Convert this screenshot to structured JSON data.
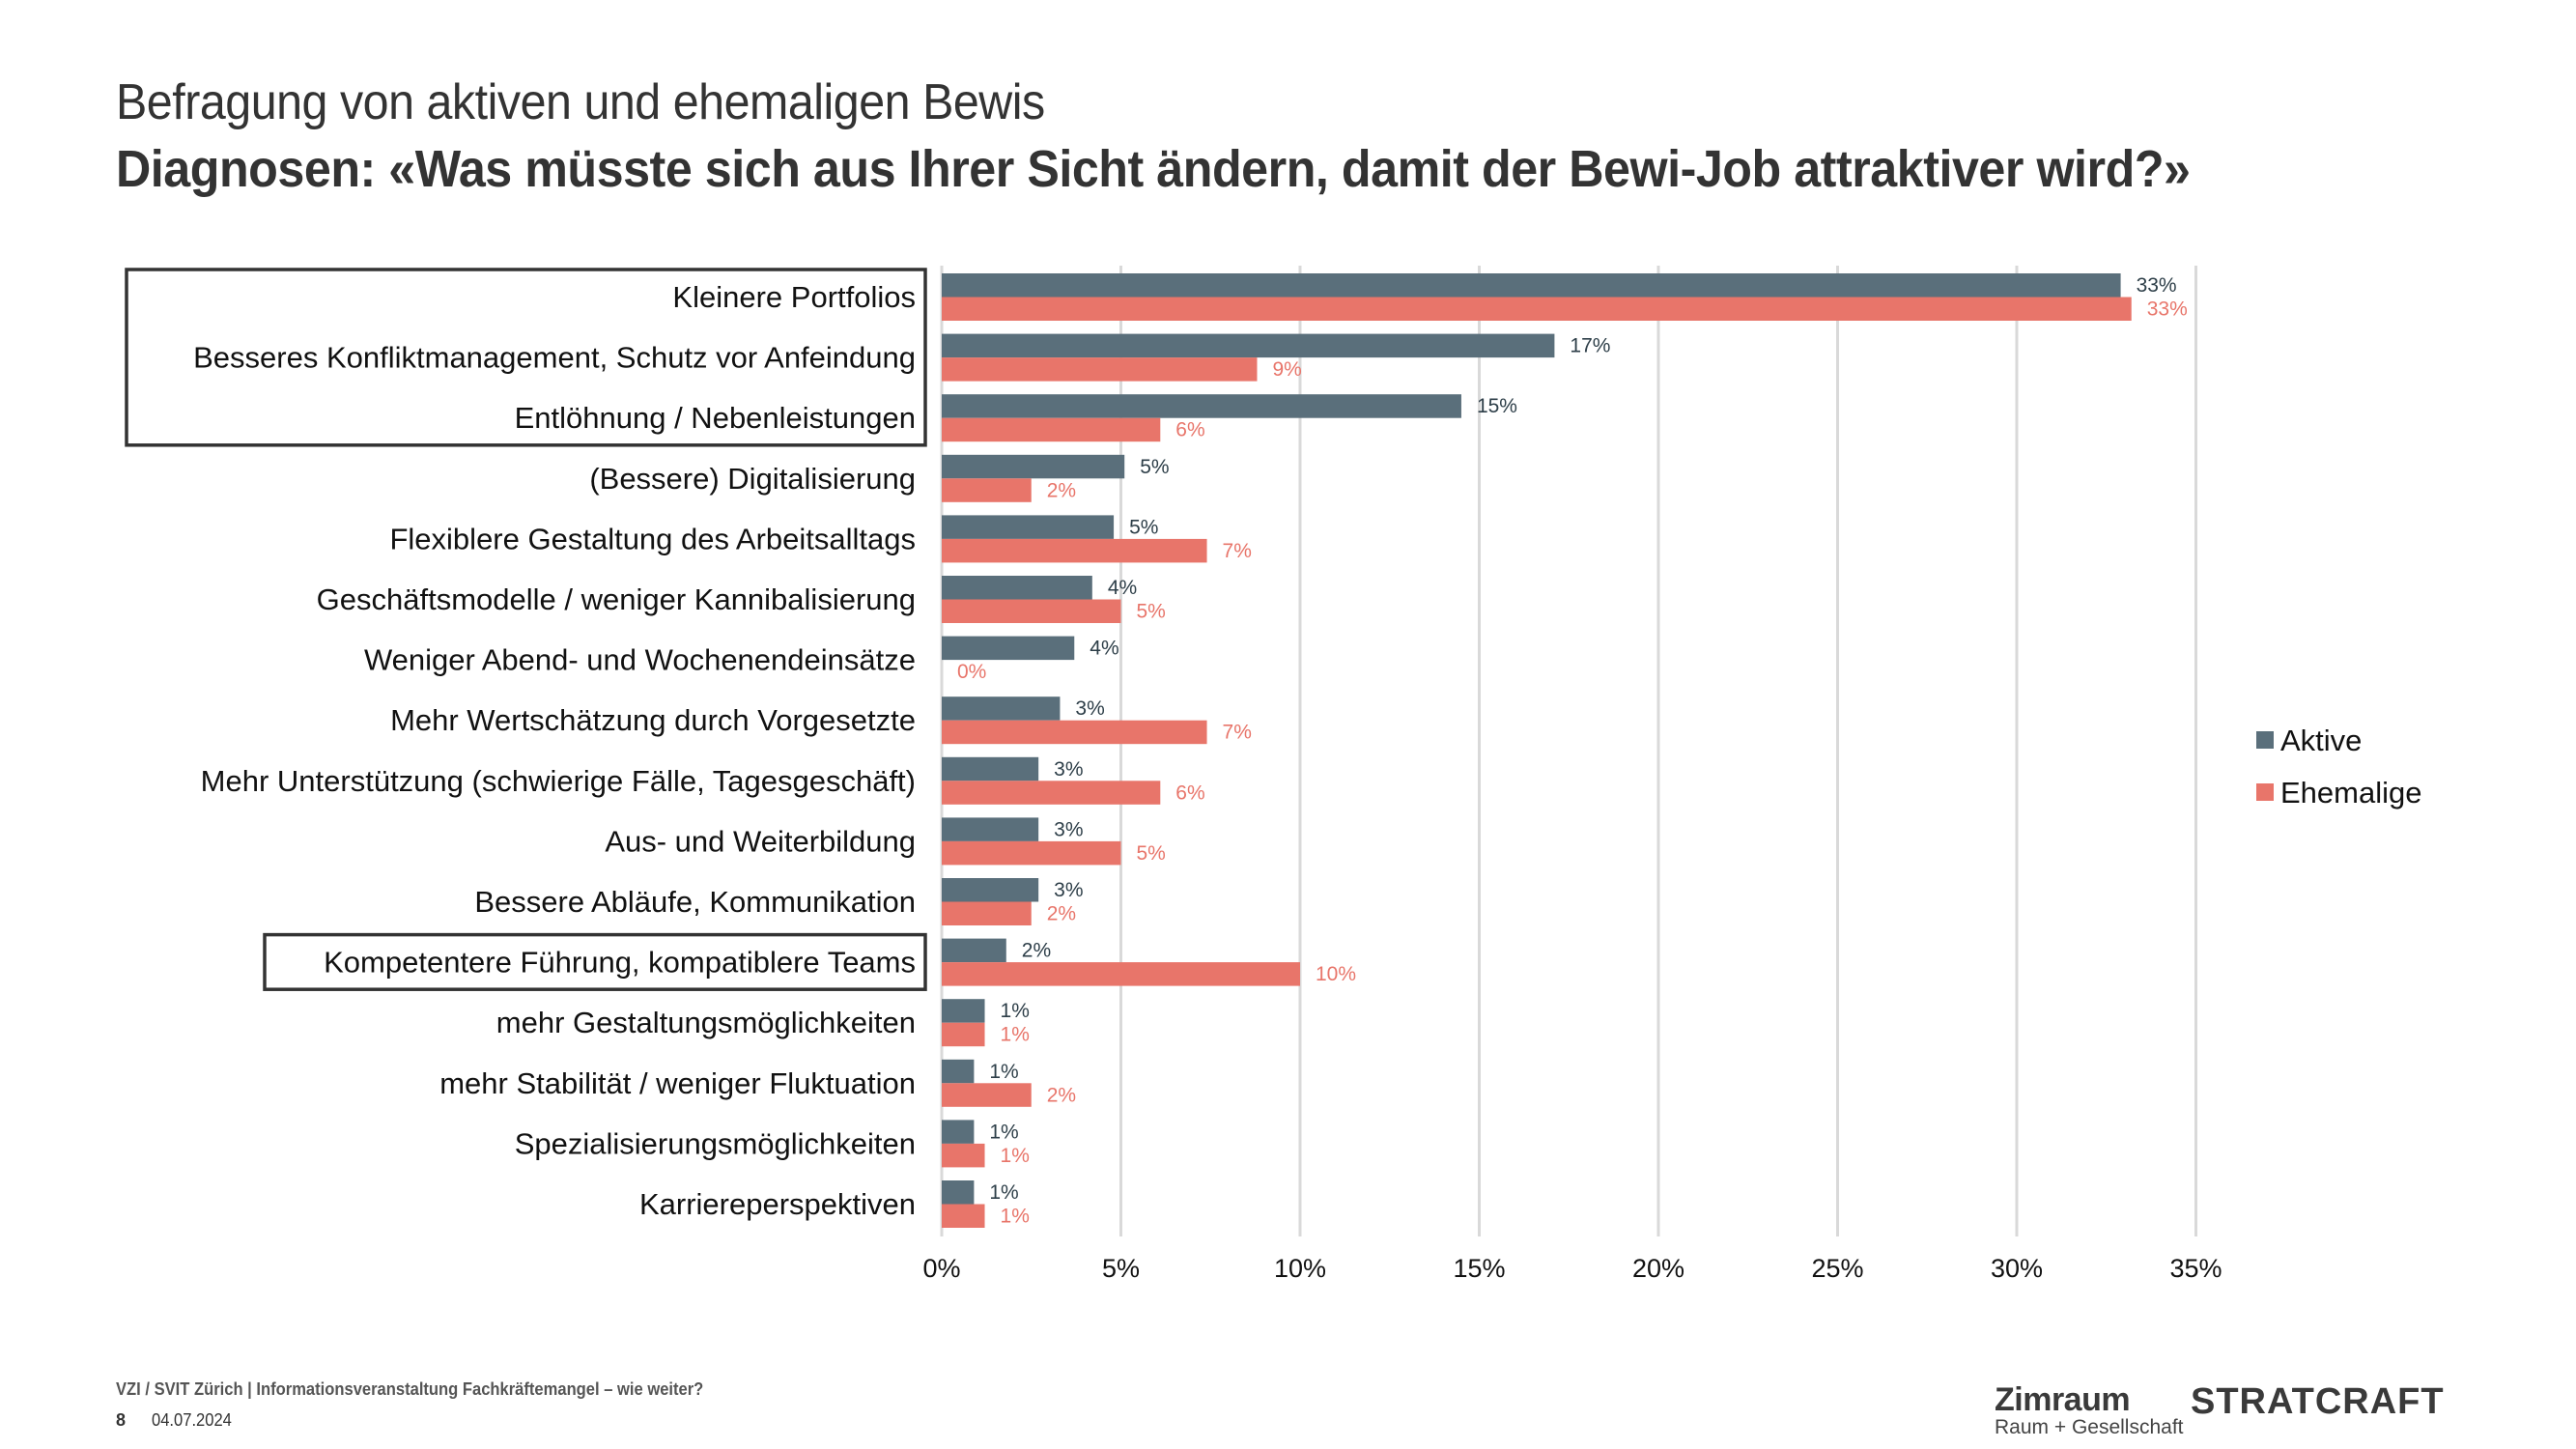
{
  "header": {
    "title": "Befragung von aktiven und ehemaligen Bewis",
    "subtitle": "Diagnosen: «Was müsste sich aus Ihrer Sicht ändern, damit der Bewi-Job attraktiver wird?»"
  },
  "colors": {
    "aktive": "#5a6f7b",
    "ehemalige": "#e8756a",
    "aktive_label": "#2d3e48",
    "gridline": "#d9d9d9",
    "highlight_box": "#333333"
  },
  "chart_data": {
    "type": "bar",
    "orientation": "horizontal",
    "title": "",
    "xlabel": "",
    "ylabel": "",
    "xlim": [
      0,
      35
    ],
    "x_ticks": [
      "0%",
      "5%",
      "10%",
      "15%",
      "20%",
      "25%",
      "30%",
      "35%"
    ],
    "x_tick_values": [
      0,
      5,
      10,
      15,
      20,
      25,
      30,
      35
    ],
    "grid": "vertical",
    "legend_position": "right",
    "categories": [
      "Kleinere Portfolios",
      "Besseres Konfliktmanagement, Schutz vor Anfeindung",
      "Entlöhnung / Nebenleistungen",
      "(Bessere) Digitalisierung",
      "Flexiblere Gestaltung des Arbeitsalltags",
      "Geschäftsmodelle / weniger Kannibalisierung",
      "Weniger Abend- und Wochenendeinsätze",
      "Mehr Wertschätzung durch Vorgesetzte",
      "Mehr Unterstützung (schwierige Fälle, Tagesgeschäft)",
      "Aus- und Weiterbildung",
      "Bessere Abläufe, Kommunikation",
      "Kompetentere Führung, kompatiblere Teams",
      "mehr Gestaltungsmöglichkeiten",
      "mehr Stabilität / weniger Fluktuation",
      "Spezialisierungsmöglichkeiten",
      "Karriereperspektiven"
    ],
    "highlighted_groups": [
      [
        0,
        2
      ],
      [
        11,
        11
      ]
    ],
    "series": [
      {
        "name": "Aktive",
        "values": [
          32.9,
          17.1,
          14.5,
          5.1,
          4.8,
          4.2,
          3.7,
          3.3,
          2.7,
          2.7,
          2.7,
          1.8,
          1.2,
          0.9,
          0.9,
          0.9
        ],
        "labels": [
          "33%",
          "17%",
          "15%",
          "5%",
          "5%",
          "4%",
          "4%",
          "3%",
          "3%",
          "3%",
          "3%",
          "2%",
          "1%",
          "1%",
          "1%",
          "1%"
        ]
      },
      {
        "name": "Ehemalige",
        "values": [
          33.2,
          8.8,
          6.1,
          2.5,
          7.4,
          5.0,
          0.0,
          7.4,
          6.1,
          5.0,
          2.5,
          10.0,
          1.2,
          2.5,
          1.2,
          1.2
        ],
        "labels": [
          "33%",
          "9%",
          "6%",
          "2%",
          "7%",
          "5%",
          "0%",
          "7%",
          "6%",
          "5%",
          "2%",
          "10%",
          "1%",
          "2%",
          "1%",
          "1%"
        ]
      }
    ]
  },
  "footer": {
    "event": "VZI / SVIT Zürich | Informationsveranstaltung Fachkräftemangel – wie weiter?",
    "page_number": "8",
    "date": "04.07.2024"
  },
  "logos": {
    "zimraum": "Zimraum",
    "zimraum_tagline": "Raum + Gesellschaft",
    "stratcraft": "STRATCRAFT"
  }
}
